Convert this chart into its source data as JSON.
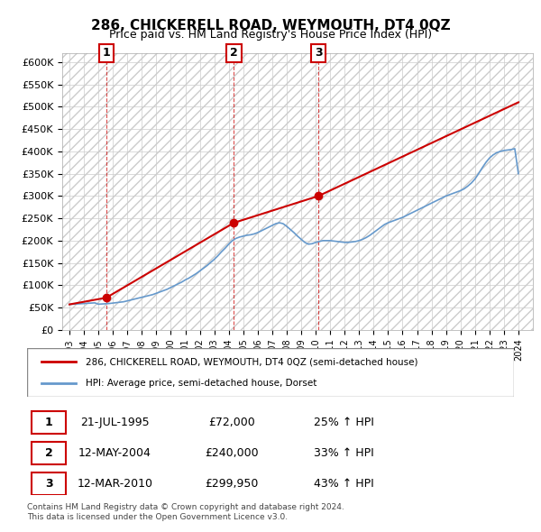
{
  "title": "286, CHICKERELL ROAD, WEYMOUTH, DT4 0QZ",
  "subtitle": "Price paid vs. HM Land Registry's House Price Index (HPI)",
  "property_label": "286, CHICKERELL ROAD, WEYMOUTH, DT4 0QZ (semi-detached house)",
  "hpi_label": "HPI: Average price, semi-detached house, Dorset",
  "transactions": [
    {
      "num": "1",
      "date": "21-JUL-1995",
      "price": 72000,
      "pct": "25% ↑ HPI",
      "x": 1995.54
    },
    {
      "num": "2",
      "date": "12-MAY-2004",
      "price": 240000,
      "pct": "33% ↑ HPI",
      "x": 2004.36
    },
    {
      "num": "3",
      "date": "12-MAR-2010",
      "price": 299950,
      "pct": "43% ↑ HPI",
      "x": 2010.19
    }
  ],
  "footer": [
    "Contains HM Land Registry data © Crown copyright and database right 2024.",
    "This data is licensed under the Open Government Licence v3.0."
  ],
  "property_color": "#cc0000",
  "hpi_color": "#6699cc",
  "marker_color": "#cc0000",
  "dashed_color": "#cc0000",
  "background_color": "#ffffff",
  "grid_color": "#cccccc",
  "hatch_color": "#dddddd",
  "ylim": [
    0,
    620000
  ],
  "yticks": [
    0,
    50000,
    100000,
    150000,
    200000,
    250000,
    300000,
    350000,
    400000,
    450000,
    500000,
    550000,
    600000
  ],
  "xlim": [
    1992.5,
    2025
  ],
  "xticks": [
    1993,
    1994,
    1995,
    1996,
    1997,
    1998,
    1999,
    2000,
    2001,
    2002,
    2003,
    2004,
    2005,
    2006,
    2007,
    2008,
    2009,
    2010,
    2011,
    2012,
    2013,
    2014,
    2015,
    2016,
    2017,
    2018,
    2019,
    2020,
    2021,
    2022,
    2023,
    2024
  ],
  "hpi_x": [
    1993,
    1993.25,
    1993.5,
    1993.75,
    1994,
    1994.25,
    1994.5,
    1994.75,
    1995,
    1995.25,
    1995.5,
    1995.75,
    1996,
    1996.25,
    1996.5,
    1996.75,
    1997,
    1997.25,
    1997.5,
    1997.75,
    1998,
    1998.25,
    1998.5,
    1998.75,
    1999,
    1999.25,
    1999.5,
    1999.75,
    2000,
    2000.25,
    2000.5,
    2000.75,
    2001,
    2001.25,
    2001.5,
    2001.75,
    2002,
    2002.25,
    2002.5,
    2002.75,
    2003,
    2003.25,
    2003.5,
    2003.75,
    2004,
    2004.25,
    2004.5,
    2004.75,
    2005,
    2005.25,
    2005.5,
    2005.75,
    2006,
    2006.25,
    2006.5,
    2006.75,
    2007,
    2007.25,
    2007.5,
    2007.75,
    2008,
    2008.25,
    2008.5,
    2008.75,
    2009,
    2009.25,
    2009.5,
    2009.75,
    2010,
    2010.25,
    2010.5,
    2010.75,
    2011,
    2011.25,
    2011.5,
    2011.75,
    2012,
    2012.25,
    2012.5,
    2012.75,
    2013,
    2013.25,
    2013.5,
    2013.75,
    2014,
    2014.25,
    2014.5,
    2014.75,
    2015,
    2015.25,
    2015.5,
    2015.75,
    2016,
    2016.25,
    2016.5,
    2016.75,
    2017,
    2017.25,
    2017.5,
    2017.75,
    2018,
    2018.25,
    2018.5,
    2018.75,
    2019,
    2019.25,
    2019.5,
    2019.75,
    2020,
    2020.25,
    2020.5,
    2020.75,
    2021,
    2021.25,
    2021.5,
    2021.75,
    2022,
    2022.25,
    2022.5,
    2022.75,
    2023,
    2023.25,
    2023.5,
    2023.75,
    2024
  ],
  "hpi_y": [
    57000,
    57500,
    58000,
    58500,
    59000,
    59500,
    60000,
    60500,
    57500,
    58000,
    58500,
    59000,
    60000,
    61000,
    62000,
    63000,
    65000,
    67000,
    69000,
    71000,
    73000,
    75000,
    77000,
    79000,
    82000,
    85000,
    88000,
    91000,
    95000,
    99000,
    103000,
    107000,
    112000,
    116000,
    121000,
    126000,
    132000,
    138000,
    144000,
    151000,
    158000,
    166000,
    175000,
    183000,
    192000,
    200000,
    205000,
    208000,
    210000,
    212000,
    213000,
    215000,
    218000,
    222000,
    226000,
    230000,
    234000,
    238000,
    240000,
    238000,
    232000,
    225000,
    218000,
    210000,
    203000,
    196000,
    192000,
    193000,
    196000,
    198000,
    200000,
    200000,
    200000,
    199000,
    198000,
    197000,
    196000,
    196000,
    197000,
    198000,
    200000,
    203000,
    207000,
    212000,
    218000,
    224000,
    230000,
    236000,
    240000,
    243000,
    246000,
    249000,
    252000,
    256000,
    260000,
    264000,
    268000,
    272000,
    276000,
    280000,
    284000,
    288000,
    292000,
    296000,
    300000,
    303000,
    306000,
    309000,
    312000,
    316000,
    322000,
    329000,
    338000,
    350000,
    363000,
    375000,
    385000,
    392000,
    397000,
    400000,
    402000,
    403000,
    404000,
    406000,
    350000
  ],
  "property_x": [
    1993,
    1995.54,
    2004.36,
    2010.19,
    2024
  ],
  "property_y": [
    57000,
    72000,
    240000,
    299950,
    510000
  ]
}
